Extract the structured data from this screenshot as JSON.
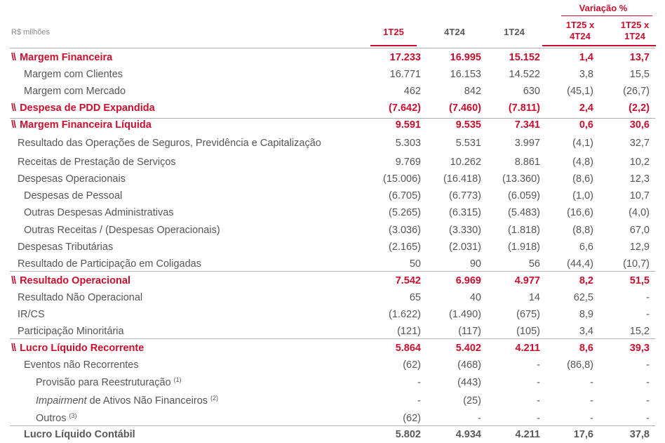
{
  "header": {
    "unit": "R$ milhões",
    "variation_title": "Variação %",
    "col_1t25": "1T25",
    "col_4t24": "4T24",
    "col_1t24": "1T24",
    "col_var_q_l1": "1T25 x",
    "col_var_q_l2": "4T24",
    "col_var_y_l1": "1T25 x",
    "col_var_y_l2": "1T24"
  },
  "marker": "\\\\",
  "rows": [
    {
      "label": "Margem Financeira",
      "v": [
        "17.233",
        "16.995",
        "15.152",
        "1,4",
        "13,7"
      ]
    },
    {
      "label": "Margem com Clientes",
      "v": [
        "16.771",
        "16.153",
        "14.522",
        "3,8",
        "15,5"
      ]
    },
    {
      "label": "Margem com Mercado",
      "v": [
        "462",
        "842",
        "630",
        "(45,1)",
        "(26,7)"
      ]
    },
    {
      "label": "Despesa de PDD Expandida",
      "v": [
        "(7.642)",
        "(7.460)",
        "(7.811)",
        "2,4",
        "(2,2)"
      ]
    },
    {
      "label": "Margem Financeira Líquida",
      "v": [
        "9.591",
        "9.535",
        "7.341",
        "0,6",
        "30,6"
      ]
    },
    {
      "label": "Resultado das Operações de Seguros, Previdência e Capitalização",
      "v": [
        "5.303",
        "5.531",
        "3.997",
        "(4,1)",
        "32,7"
      ]
    },
    {
      "label": "Receitas de Prestação de Serviços",
      "v": [
        "9.769",
        "10.262",
        "8.861",
        "(4,8)",
        "10,2"
      ]
    },
    {
      "label": "Despesas Operacionais",
      "v": [
        "(15.006)",
        "(16.418)",
        "(13.360)",
        "(8,6)",
        "12,3"
      ]
    },
    {
      "label": "Despesas de Pessoal",
      "v": [
        "(6.705)",
        "(6.773)",
        "(6.059)",
        "(1,0)",
        "10,7"
      ]
    },
    {
      "label": "Outras Despesas Administrativas",
      "v": [
        "(5.265)",
        "(6.315)",
        "(5.483)",
        "(16,6)",
        "(4,0)"
      ]
    },
    {
      "label": "Outras Receitas / (Despesas Operacionais)",
      "v": [
        "(3.036)",
        "(3.330)",
        "(1.818)",
        "(8,8)",
        "67,0"
      ]
    },
    {
      "label": "Despesas Tributárias",
      "v": [
        "(2.165)",
        "(2.031)",
        "(1.918)",
        "6,6",
        "12,9"
      ]
    },
    {
      "label": "Resultado de Participação em Coligadas",
      "v": [
        "50",
        "90",
        "56",
        "(44,4)",
        "(10,7)"
      ]
    },
    {
      "label": "Resultado Operacional",
      "v": [
        "7.542",
        "6.969",
        "4.977",
        "8,2",
        "51,5"
      ]
    },
    {
      "label": "Resultado Não Operacional",
      "v": [
        "65",
        "40",
        "14",
        "62,5",
        "-"
      ]
    },
    {
      "label": "IR/CS",
      "v": [
        "(1.622)",
        "(1.490)",
        "(675)",
        "8,9",
        "-"
      ]
    },
    {
      "label": "Participação Minoritária",
      "v": [
        "(121)",
        "(117)",
        "(105)",
        "3,4",
        "15,2"
      ]
    },
    {
      "label": "Lucro Líquido Recorrente",
      "v": [
        "5.864",
        "5.402",
        "4.211",
        "8,6",
        "39,3"
      ]
    },
    {
      "label": "Eventos não Recorrentes",
      "v": [
        "(62)",
        "(468)",
        "-",
        "(86,8)",
        "-"
      ]
    },
    {
      "label": "Provisão para Reestruturação",
      "note": "(1)",
      "v": [
        "-",
        "(443)",
        "-",
        "-",
        "-"
      ]
    },
    {
      "label_italic": "Impairment",
      "label": "de Ativos Não Financeiros",
      "note": "(2)",
      "v": [
        "-",
        "(25)",
        "-",
        "-",
        "-"
      ]
    },
    {
      "label": "Outros",
      "note": "(3)",
      "v": [
        "(62)",
        "-",
        "-",
        "-",
        "-"
      ]
    },
    {
      "label": "Lucro Líquido Contábil",
      "v": [
        "5.802",
        "4.934",
        "4.211",
        "17,6",
        "37,8"
      ]
    }
  ]
}
